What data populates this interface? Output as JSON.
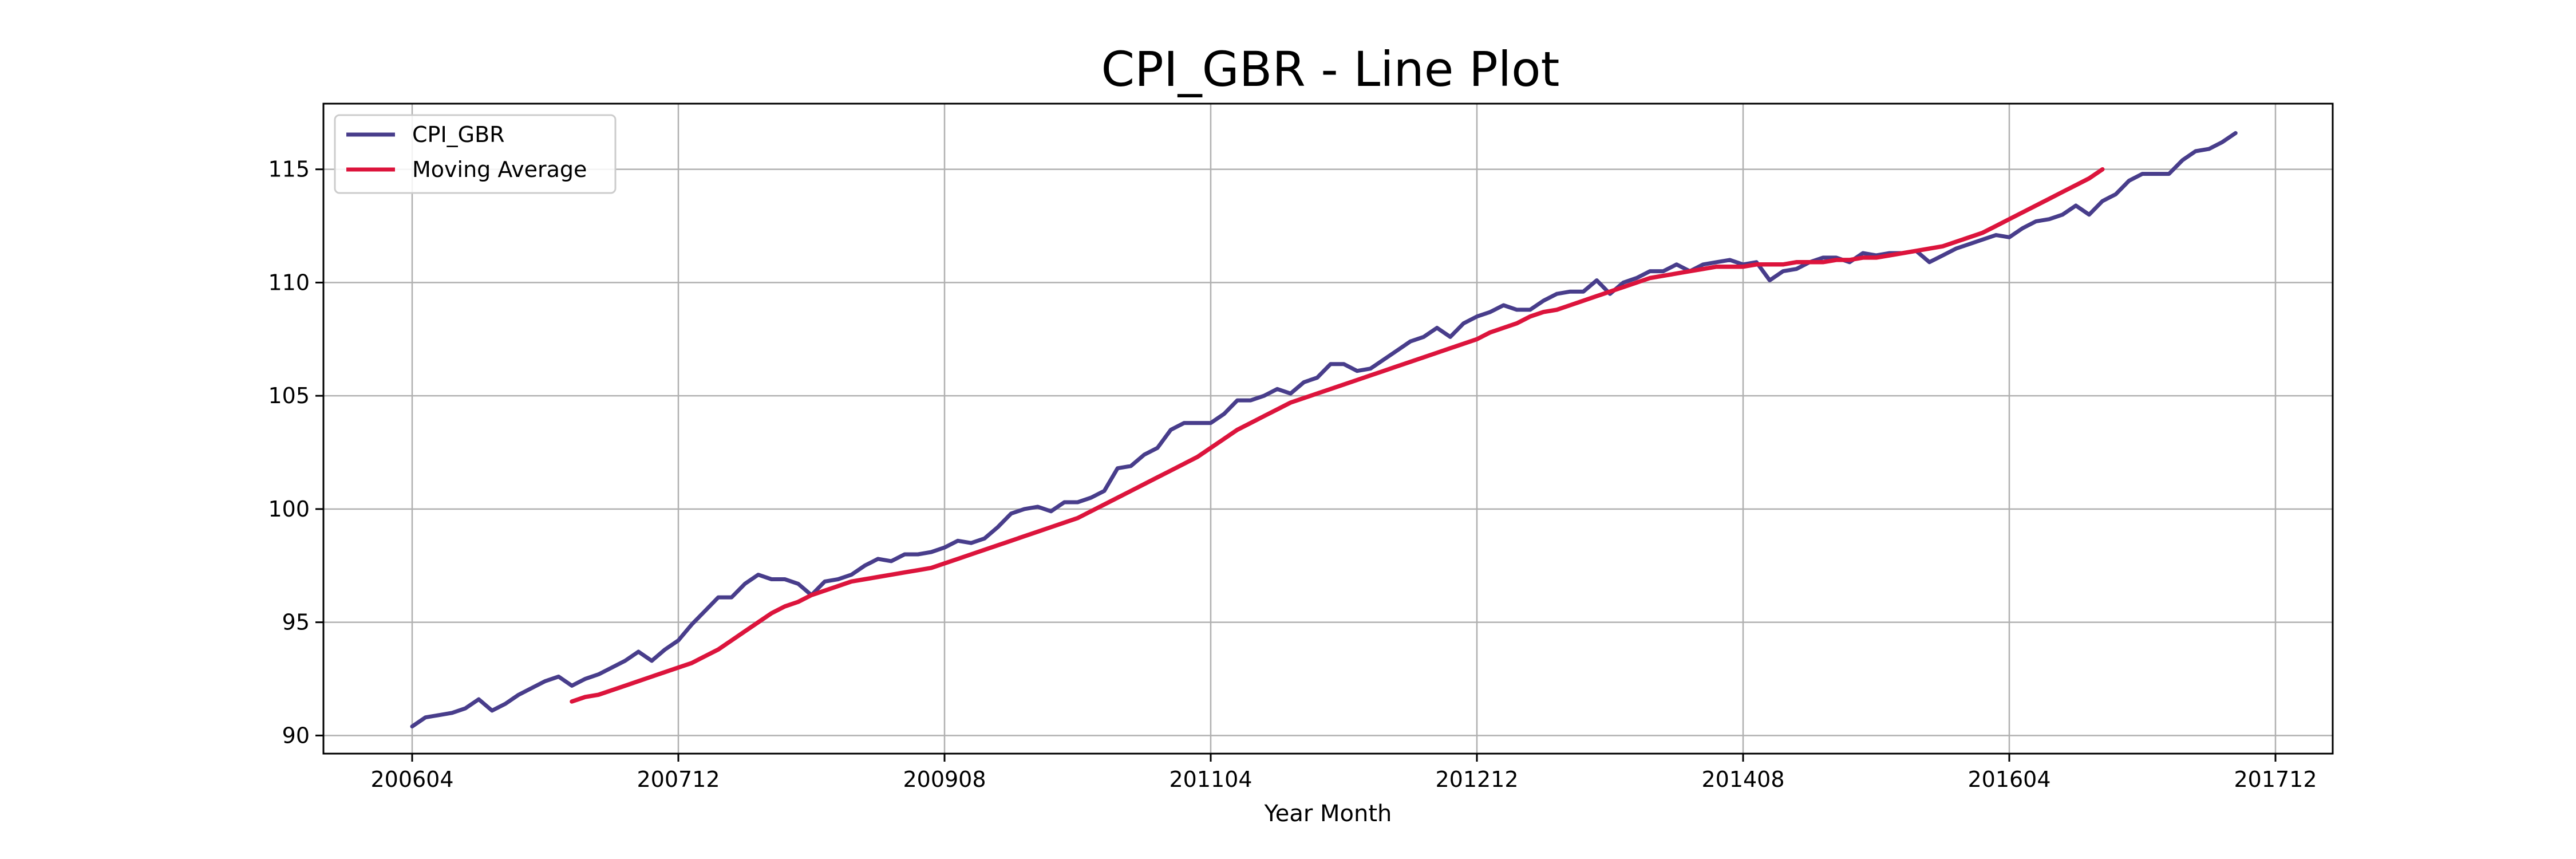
{
  "chart_data": {
    "type": "line",
    "title": "CPI_GBR - Line Plot",
    "xlabel": "Year Month",
    "ylabel": "",
    "x_tick_labels": [
      "200604",
      "200712",
      "200908",
      "201104",
      "201212",
      "201408",
      "201604",
      "201712"
    ],
    "y_tick_labels": [
      "90",
      "95",
      "100",
      "105",
      "110",
      "115"
    ],
    "ylim": [
      89.2,
      117.9
    ],
    "grid": true,
    "legend_placement": "top-left",
    "x_start": "2006-04",
    "series": [
      {
        "name": "CPI_GBR",
        "color": "#483d8b",
        "values": [
          90.4,
          90.8,
          90.9,
          91.0,
          91.2,
          91.6,
          91.1,
          91.4,
          91.8,
          92.1,
          92.4,
          92.6,
          92.2,
          92.5,
          92.7,
          93.0,
          93.3,
          93.7,
          93.3,
          93.8,
          94.2,
          94.9,
          95.5,
          96.1,
          96.1,
          96.7,
          97.1,
          96.9,
          96.9,
          96.7,
          96.2,
          96.8,
          96.9,
          97.1,
          97.5,
          97.8,
          97.7,
          98.0,
          98.0,
          98.1,
          98.3,
          98.6,
          98.5,
          98.7,
          99.2,
          99.8,
          100.0,
          100.1,
          99.9,
          100.3,
          100.3,
          100.5,
          100.8,
          101.8,
          101.9,
          102.4,
          102.7,
          103.5,
          103.8,
          103.8,
          103.8,
          104.2,
          104.8,
          104.8,
          105.0,
          105.3,
          105.1,
          105.6,
          105.8,
          106.4,
          106.4,
          106.1,
          106.2,
          106.6,
          107.0,
          107.4,
          107.6,
          108.0,
          107.6,
          108.2,
          108.5,
          108.7,
          109.0,
          108.8,
          108.8,
          109.2,
          109.5,
          109.6,
          109.6,
          110.1,
          109.5,
          110.0,
          110.2,
          110.5,
          110.5,
          110.8,
          110.5,
          110.8,
          110.9,
          111.0,
          110.8,
          110.9,
          110.1,
          110.5,
          110.6,
          110.9,
          111.1,
          111.1,
          110.9,
          111.3,
          111.2,
          111.3,
          111.3,
          111.4,
          110.9,
          111.2,
          111.5,
          111.7,
          111.9,
          112.1,
          112.0,
          112.4,
          112.7,
          112.8,
          113.0,
          113.4,
          113.0,
          113.6,
          113.9,
          114.5,
          114.8,
          114.8,
          114.8,
          115.4,
          115.8,
          115.9,
          116.2,
          116.6
        ]
      },
      {
        "name": "Moving Average",
        "color": "#dc143c",
        "start_index": 12,
        "values": [
          91.5,
          91.7,
          91.8,
          92.0,
          92.2,
          92.4,
          92.6,
          92.8,
          93.0,
          93.2,
          93.5,
          93.8,
          94.2,
          94.6,
          95.0,
          95.4,
          95.7,
          95.9,
          96.2,
          96.4,
          96.6,
          96.8,
          96.9,
          97.0,
          97.1,
          97.2,
          97.3,
          97.4,
          97.6,
          97.8,
          98.0,
          98.2,
          98.4,
          98.6,
          98.8,
          99.0,
          99.2,
          99.4,
          99.6,
          99.9,
          100.2,
          100.5,
          100.8,
          101.1,
          101.4,
          101.7,
          102.0,
          102.3,
          102.7,
          103.1,
          103.5,
          103.8,
          104.1,
          104.4,
          104.7,
          104.9,
          105.1,
          105.3,
          105.5,
          105.7,
          105.9,
          106.1,
          106.3,
          106.5,
          106.7,
          106.9,
          107.1,
          107.3,
          107.5,
          107.8,
          108.0,
          108.2,
          108.5,
          108.7,
          108.8,
          109.0,
          109.2,
          109.4,
          109.6,
          109.8,
          110.0,
          110.2,
          110.3,
          110.4,
          110.5,
          110.6,
          110.7,
          110.7,
          110.7,
          110.8,
          110.8,
          110.8,
          110.9,
          110.9,
          110.9,
          111.0,
          111.0,
          111.1,
          111.1,
          111.2,
          111.3,
          111.4,
          111.5,
          111.6,
          111.8,
          112.0,
          112.2,
          112.5,
          112.8,
          113.1,
          113.4,
          113.7,
          114.0,
          114.3,
          114.6,
          115.0
        ]
      }
    ]
  }
}
